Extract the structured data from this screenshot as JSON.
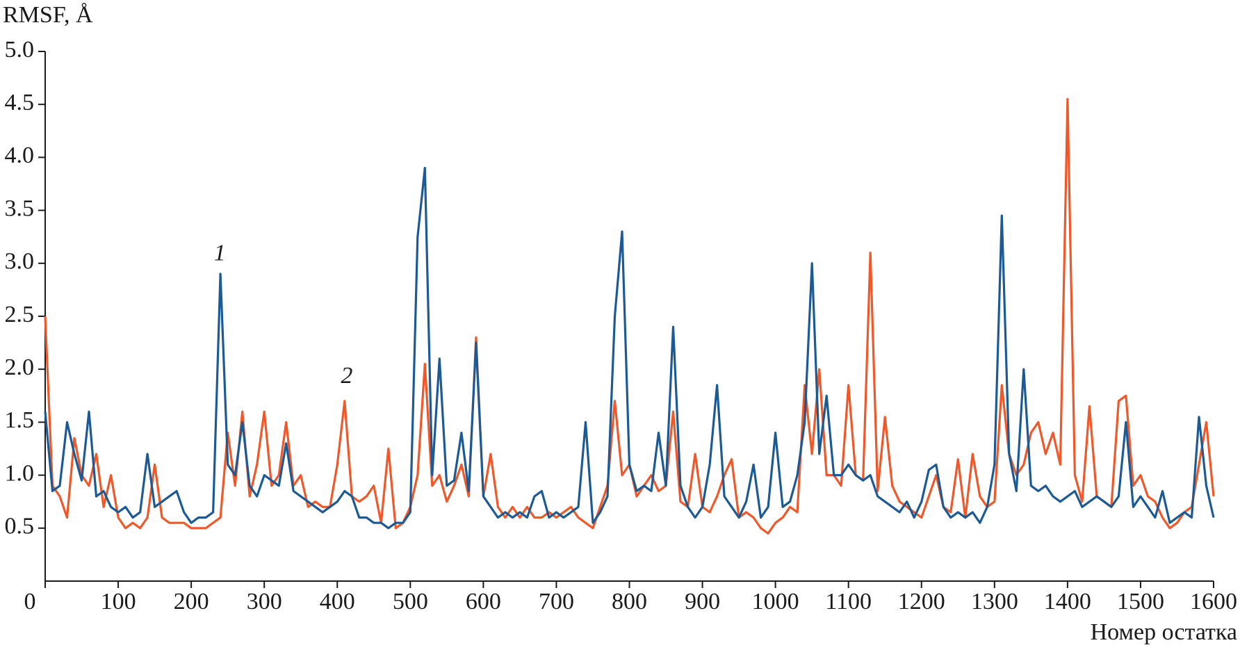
{
  "chart_data": {
    "type": "line",
    "y_label": "RMSF, Å",
    "x_label": "Номер остатка",
    "xlim": [
      0,
      1600
    ],
    "ylim": [
      0,
      5
    ],
    "xticks": [
      0,
      100,
      200,
      300,
      400,
      500,
      600,
      700,
      800,
      900,
      1000,
      1100,
      1200,
      1300,
      1400,
      1500,
      1600
    ],
    "yticks": [
      {
        "value": 0.5,
        "label": "0.5"
      },
      {
        "value": 1,
        "label": "1.0"
      },
      {
        "value": 1.5,
        "label": "1.5"
      },
      {
        "value": 2,
        "label": "2.0"
      },
      {
        "value": 2.5,
        "label": "2.5"
      },
      {
        "value": 3,
        "label": "3.0"
      },
      {
        "value": 3.5,
        "label": "3.5"
      },
      {
        "value": 4,
        "label": "4.0"
      },
      {
        "value": 4.5,
        "label": "4.5"
      },
      {
        "value": 5,
        "label": "5.0"
      }
    ],
    "x": [
      0,
      10,
      20,
      30,
      40,
      50,
      60,
      70,
      80,
      90,
      100,
      110,
      120,
      130,
      140,
      150,
      160,
      170,
      180,
      190,
      200,
      210,
      220,
      230,
      240,
      250,
      260,
      270,
      280,
      290,
      300,
      310,
      320,
      330,
      340,
      350,
      360,
      370,
      380,
      390,
      400,
      410,
      420,
      430,
      440,
      450,
      460,
      470,
      480,
      490,
      500,
      510,
      520,
      530,
      540,
      550,
      560,
      570,
      580,
      590,
      600,
      610,
      620,
      630,
      640,
      650,
      660,
      670,
      680,
      690,
      700,
      710,
      720,
      730,
      740,
      750,
      760,
      770,
      780,
      790,
      800,
      810,
      820,
      830,
      840,
      850,
      860,
      870,
      880,
      890,
      900,
      910,
      920,
      930,
      940,
      950,
      960,
      970,
      980,
      990,
      1000,
      1010,
      1020,
      1030,
      1040,
      1050,
      1060,
      1070,
      1080,
      1090,
      1100,
      1110,
      1120,
      1130,
      1140,
      1150,
      1160,
      1170,
      1180,
      1190,
      1200,
      1210,
      1220,
      1230,
      1240,
      1250,
      1260,
      1270,
      1280,
      1290,
      1300,
      1310,
      1320,
      1330,
      1340,
      1350,
      1360,
      1370,
      1380,
      1390,
      1400,
      1410,
      1420,
      1430,
      1440,
      1450,
      1460,
      1470,
      1480,
      1490,
      1500,
      1510,
      1520,
      1530,
      1540,
      1550,
      1560,
      1570,
      1580,
      1590,
      1600
    ],
    "series": [
      {
        "color": "#1b5a94",
        "values": [
          1.6,
          0.85,
          0.9,
          1.5,
          1.2,
          0.95,
          1.6,
          0.8,
          0.85,
          0.7,
          0.65,
          0.7,
          0.6,
          0.65,
          1.2,
          0.7,
          0.75,
          0.8,
          0.85,
          0.65,
          0.55,
          0.6,
          0.6,
          0.65,
          2.9,
          1.1,
          1.0,
          1.5,
          0.9,
          0.8,
          1.0,
          0.95,
          0.9,
          1.3,
          0.85,
          0.8,
          0.75,
          0.7,
          0.65,
          0.7,
          0.75,
          0.85,
          0.8,
          0.6,
          0.6,
          0.55,
          0.55,
          0.5,
          0.55,
          0.55,
          0.65,
          3.25,
          3.9,
          1.0,
          2.1,
          0.9,
          0.95,
          1.4,
          0.85,
          2.25,
          0.8,
          0.7,
          0.6,
          0.65,
          0.6,
          0.65,
          0.6,
          0.8,
          0.85,
          0.6,
          0.65,
          0.6,
          0.65,
          0.7,
          1.5,
          0.55,
          0.65,
          0.8,
          2.5,
          3.3,
          1.1,
          0.85,
          0.9,
          0.85,
          1.4,
          0.9,
          2.4,
          0.9,
          0.7,
          0.6,
          0.7,
          1.1,
          1.85,
          0.8,
          0.7,
          0.6,
          0.75,
          1.1,
          0.6,
          0.7,
          1.4,
          0.7,
          0.75,
          1.0,
          1.5,
          3.0,
          1.2,
          1.75,
          1.0,
          1.0,
          1.1,
          1.0,
          0.95,
          1.0,
          0.8,
          0.75,
          0.7,
          0.65,
          0.75,
          0.6,
          0.75,
          1.05,
          1.1,
          0.7,
          0.6,
          0.65,
          0.6,
          0.65,
          0.55,
          0.7,
          1.1,
          3.45,
          1.2,
          0.85,
          2.0,
          0.9,
          0.85,
          0.9,
          0.8,
          0.75,
          0.8,
          0.85,
          0.7,
          0.75,
          0.8,
          0.75,
          0.7,
          0.8,
          1.5,
          0.7,
          0.8,
          0.7,
          0.6,
          0.85,
          0.55,
          0.6,
          0.65,
          0.6,
          1.55,
          0.9,
          0.6
        ]
      },
      {
        "color": "#f0582a",
        "values": [
          2.5,
          0.9,
          0.8,
          0.6,
          1.35,
          1.0,
          0.9,
          1.2,
          0.7,
          1.0,
          0.6,
          0.5,
          0.55,
          0.5,
          0.6,
          1.1,
          0.6,
          0.55,
          0.55,
          0.55,
          0.5,
          0.5,
          0.5,
          0.55,
          0.6,
          1.4,
          0.9,
          1.6,
          0.8,
          1.1,
          1.6,
          0.9,
          1.0,
          1.5,
          0.9,
          1.0,
          0.7,
          0.75,
          0.7,
          0.7,
          1.1,
          1.7,
          0.8,
          0.75,
          0.8,
          0.9,
          0.55,
          1.25,
          0.5,
          0.55,
          0.7,
          1.0,
          2.05,
          0.9,
          1.0,
          0.75,
          0.9,
          1.1,
          0.8,
          2.3,
          0.8,
          1.2,
          0.7,
          0.6,
          0.7,
          0.6,
          0.7,
          0.6,
          0.6,
          0.65,
          0.6,
          0.65,
          0.7,
          0.6,
          0.55,
          0.5,
          0.7,
          0.9,
          1.7,
          1.0,
          1.1,
          0.8,
          0.9,
          1.0,
          0.85,
          0.9,
          1.6,
          0.75,
          0.7,
          1.2,
          0.7,
          0.65,
          0.8,
          1.0,
          1.15,
          0.6,
          0.65,
          0.6,
          0.5,
          0.45,
          0.55,
          0.6,
          0.7,
          0.65,
          1.85,
          1.2,
          2.0,
          1.0,
          1.0,
          0.9,
          1.85,
          1.0,
          0.95,
          3.1,
          0.85,
          1.55,
          0.9,
          0.75,
          0.7,
          0.65,
          0.6,
          0.8,
          1.0,
          0.7,
          0.65,
          1.15,
          0.6,
          1.2,
          0.8,
          0.7,
          0.75,
          1.85,
          1.2,
          1.0,
          1.1,
          1.4,
          1.5,
          1.2,
          1.4,
          1.1,
          4.55,
          1.0,
          0.75,
          1.65,
          0.8,
          0.75,
          0.7,
          1.7,
          1.75,
          0.9,
          1.0,
          0.8,
          0.75,
          0.6,
          0.5,
          0.55,
          0.65,
          0.7,
          1.1,
          1.5,
          0.8
        ]
      }
    ],
    "annotations": [
      {
        "text": "1",
        "x": 239,
        "y": 3.08
      },
      {
        "text": "2",
        "x": 413,
        "y": 1.92
      }
    ]
  }
}
